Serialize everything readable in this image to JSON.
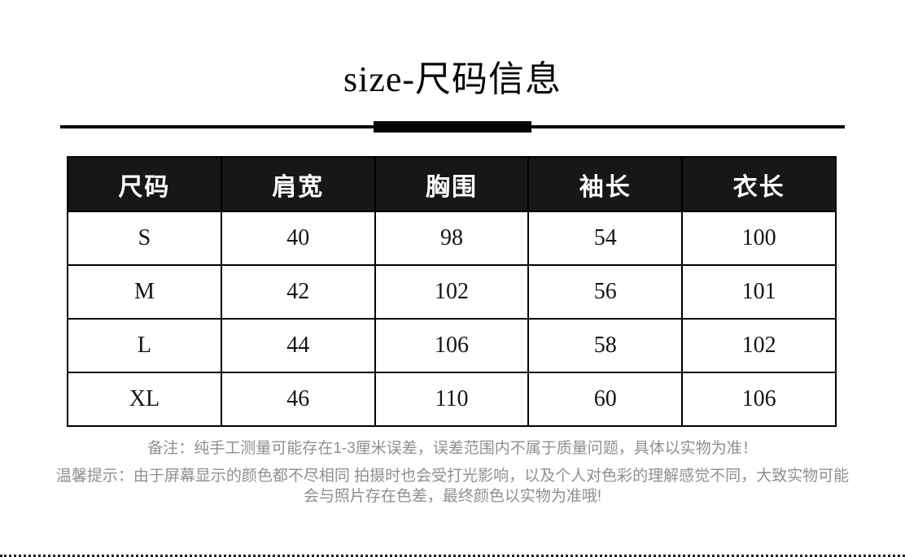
{
  "page": {
    "title": "size-尺码信息",
    "background": "#ffffff",
    "accent_color": "#050505"
  },
  "size_table": {
    "headers": [
      "尺码",
      "肩宽",
      "胸围",
      "袖长",
      "衣长"
    ],
    "rows": [
      [
        "S",
        "40",
        "98",
        "54",
        "100"
      ],
      [
        "M",
        "42",
        "102",
        "56",
        "101"
      ],
      [
        "L",
        "44",
        "106",
        "58",
        "102"
      ],
      [
        "XL",
        "46",
        "110",
        "60",
        "106"
      ]
    ],
    "header_bg": "#171717",
    "header_text_color": "#ffffff",
    "border_color": "#000000"
  },
  "notes": {
    "measurement": "备注：纯手工测量可能存在1-3厘米误差，误差范围内不属于质量问题，具体以实物为准！",
    "color_tip_line1": "温馨提示：由于屏幕显示的颜色都不尽相同 拍摄时也会受打光影响，以及个人对色彩的理解感觉不同，大致实物可能",
    "color_tip_line2": "会与照片存在色差，最终颜色以实物为准哦!",
    "text_color": "#8f8f8f"
  }
}
